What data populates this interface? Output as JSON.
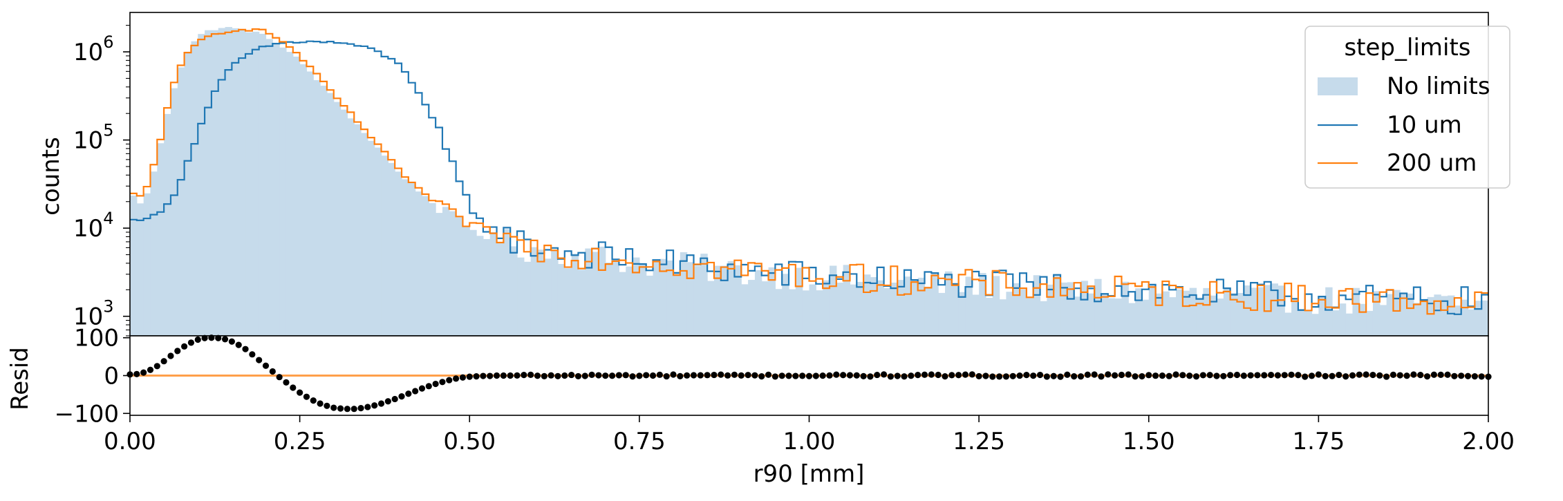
{
  "chart_data": [
    {
      "type": "histogram",
      "panel": "main",
      "ylabel": "counts",
      "yscale": "log",
      "ylim": [
        600,
        2800000
      ],
      "xlim": [
        0.0,
        2.0
      ],
      "bin_width": 0.01,
      "ytick_labels": [
        {
          "value": 1000,
          "base": "10",
          "exp": "3"
        },
        {
          "value": 10000,
          "base": "10",
          "exp": "4"
        },
        {
          "value": 100000,
          "base": "10",
          "exp": "5"
        },
        {
          "value": 1000000,
          "base": "10",
          "exp": "6"
        }
      ],
      "legend": {
        "title": "step_limits",
        "placement": "top-right",
        "entries": [
          "No limits",
          "10 um",
          "200 um"
        ]
      },
      "series": [
        {
          "name": "No limits",
          "style": "filled",
          "color": "#c6dbeb",
          "anchors": {
            "x": [
              0.0,
              0.02,
              0.04,
              0.06,
              0.08,
              0.1,
              0.12,
              0.14,
              0.16,
              0.18,
              0.2,
              0.22,
              0.25,
              0.3,
              0.35,
              0.4,
              0.45,
              0.5,
              0.55,
              0.6,
              0.7,
              0.8,
              0.9,
              1.0,
              1.2,
              1.4,
              1.6,
              1.8,
              2.0
            ],
            "y": [
              25000,
              18000,
              60000,
              300000,
              900000,
              1500000,
              1800000,
              1900000,
              1800000,
              1700000,
              1500000,
              1200000,
              800000,
              300000,
              110000,
              40000,
              18000,
              10000,
              7000,
              5500,
              4500,
              3800,
              3200,
              2800,
              2300,
              2000,
              1700,
              1500,
              1350
            ]
          }
        },
        {
          "name": "10 um",
          "style": "step",
          "color": "#1f77b4",
          "anchors": {
            "x": [
              0.0,
              0.02,
              0.04,
              0.06,
              0.08,
              0.1,
              0.12,
              0.14,
              0.16,
              0.18,
              0.2,
              0.22,
              0.25,
              0.28,
              0.32,
              0.36,
              0.4,
              0.43,
              0.46,
              0.49,
              0.52,
              0.55,
              0.6,
              0.7,
              0.8,
              0.9,
              1.0,
              1.2,
              1.4,
              1.6,
              1.8,
              2.0
            ],
            "y": [
              12000,
              13000,
              14000,
              20000,
              45000,
              120000,
              300000,
              550000,
              800000,
              1000000,
              1150000,
              1250000,
              1300000,
              1300000,
              1250000,
              1050000,
              700000,
              300000,
              100000,
              25000,
              11000,
              8000,
              6000,
              4800,
              3900,
              3300,
              2900,
              2400,
              2100,
              1800,
              1600,
              1450
            ]
          }
        },
        {
          "name": "200 um",
          "style": "step",
          "color": "#ff7f0e",
          "anchors": {
            "x": [
              0.0,
              0.02,
              0.04,
              0.06,
              0.08,
              0.1,
              0.12,
              0.14,
              0.16,
              0.18,
              0.2,
              0.22,
              0.25,
              0.3,
              0.35,
              0.4,
              0.45,
              0.5,
              0.55,
              0.6,
              0.7,
              0.8,
              0.9,
              1.0,
              1.2,
              1.4,
              1.6,
              1.8,
              2.0
            ],
            "y": [
              25000,
              22000,
              70000,
              350000,
              850000,
              1300000,
              1550000,
              1700000,
              1800000,
              1800000,
              1700000,
              1400000,
              900000,
              330000,
              120000,
              42000,
              19000,
              11000,
              7500,
              5800,
              4700,
              3900,
              3300,
              2900,
              2400,
              2050,
              1750,
              1550,
              1400
            ]
          }
        }
      ]
    },
    {
      "type": "scatter",
      "panel": "residual",
      "ylabel": "Resid",
      "xlabel": "r90 [mm]",
      "xlim": [
        0.0,
        2.0
      ],
      "ylim": [
        -105,
        105
      ],
      "yticks": [
        100,
        0,
        -100
      ],
      "ytick_labels": [
        "100",
        "0",
        "−100"
      ],
      "xticks": [
        0.0,
        0.25,
        0.5,
        0.75,
        1.0,
        1.25,
        1.5,
        1.75,
        2.0
      ],
      "xtick_labels": [
        "0.00",
        "0.25",
        "0.50",
        "0.75",
        "1.00",
        "1.25",
        "1.50",
        "1.75",
        "2.00"
      ],
      "zero_line_color": "#ff7f0e",
      "points": {
        "x": [
          0.0,
          0.01,
          0.02,
          0.03,
          0.04,
          0.05,
          0.06,
          0.07,
          0.08,
          0.09,
          0.1,
          0.11,
          0.12,
          0.13,
          0.14,
          0.15,
          0.16,
          0.17,
          0.18,
          0.19,
          0.2,
          0.21,
          0.22,
          0.23,
          0.24,
          0.25,
          0.26,
          0.27,
          0.28,
          0.29,
          0.3,
          0.31,
          0.32,
          0.33,
          0.34,
          0.35,
          0.36,
          0.37,
          0.38,
          0.39,
          0.4,
          0.41,
          0.42,
          0.43,
          0.44,
          0.45,
          0.46,
          0.47,
          0.48,
          0.49,
          0.5,
          0.51,
          0.52,
          0.53,
          0.54,
          0.55,
          0.56
        ],
        "y": [
          3,
          4,
          8,
          15,
          25,
          38,
          52,
          65,
          77,
          87,
          95,
          99,
          100,
          99,
          96,
          90,
          81,
          70,
          56,
          41,
          26,
          11,
          -4,
          -18,
          -32,
          -45,
          -56,
          -66,
          -74,
          -80,
          -85,
          -87,
          -88,
          -88,
          -86,
          -83,
          -79,
          -74,
          -68,
          -62,
          -55,
          -48,
          -41,
          -34,
          -28,
          -22,
          -17,
          -12,
          -8,
          -5,
          -3,
          -2,
          -1,
          -1,
          0,
          0,
          0
        ]
      }
    }
  ]
}
